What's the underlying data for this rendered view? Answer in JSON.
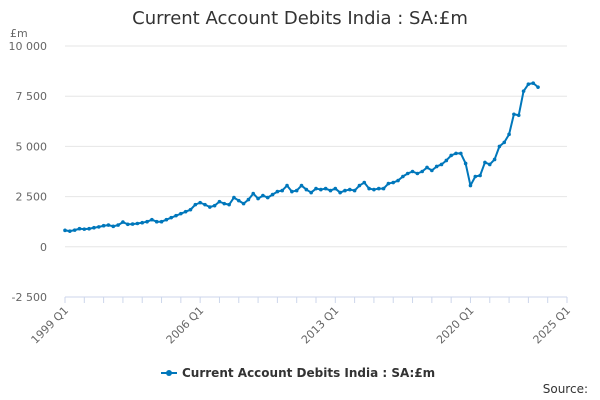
{
  "chart_data": {
    "type": "line",
    "title": "Current Account Debits India : SA:£m",
    "unit_label": "£m",
    "source_label": "Source:",
    "series_color": "#0077bb",
    "legend_placement": "bottom-center",
    "grid": true,
    "ylim": [
      -2500,
      10000
    ],
    "yticks": [
      -2500,
      0,
      2500,
      5000,
      7500,
      10000
    ],
    "ytick_labels": [
      "-2 500",
      "0",
      "2 500",
      "5 000",
      "7 500",
      "10 000"
    ],
    "xticks": [
      "1999 Q1",
      "2006 Q1",
      "2013 Q1",
      "2020 Q1",
      "2025 Q1"
    ],
    "series": [
      {
        "name": "Current Account Debits India : SA:£m",
        "start": "1999 Q1",
        "values": [
          820,
          780,
          830,
          900,
          880,
          900,
          950,
          990,
          1050,
          1080,
          1020,
          1080,
          1230,
          1120,
          1130,
          1160,
          1200,
          1250,
          1350,
          1250,
          1250,
          1350,
          1450,
          1550,
          1650,
          1750,
          1850,
          2100,
          2200,
          2100,
          1980,
          2050,
          2250,
          2150,
          2100,
          2450,
          2300,
          2150,
          2350,
          2650,
          2400,
          2550,
          2450,
          2600,
          2750,
          2800,
          3050,
          2750,
          2800,
          3050,
          2850,
          2700,
          2900,
          2850,
          2900,
          2800,
          2900,
          2700,
          2800,
          2850,
          2800,
          3050,
          3200,
          2900,
          2850,
          2900,
          2900,
          3150,
          3200,
          3300,
          3500,
          3650,
          3750,
          3650,
          3750,
          3950,
          3800,
          4000,
          4100,
          4300,
          4550,
          4650,
          4650,
          4150,
          3050,
          3500,
          3550,
          4200,
          4100,
          4350,
          5000,
          5200,
          5600,
          6600,
          6550,
          7750,
          8100,
          8150,
          7950
        ]
      }
    ]
  }
}
